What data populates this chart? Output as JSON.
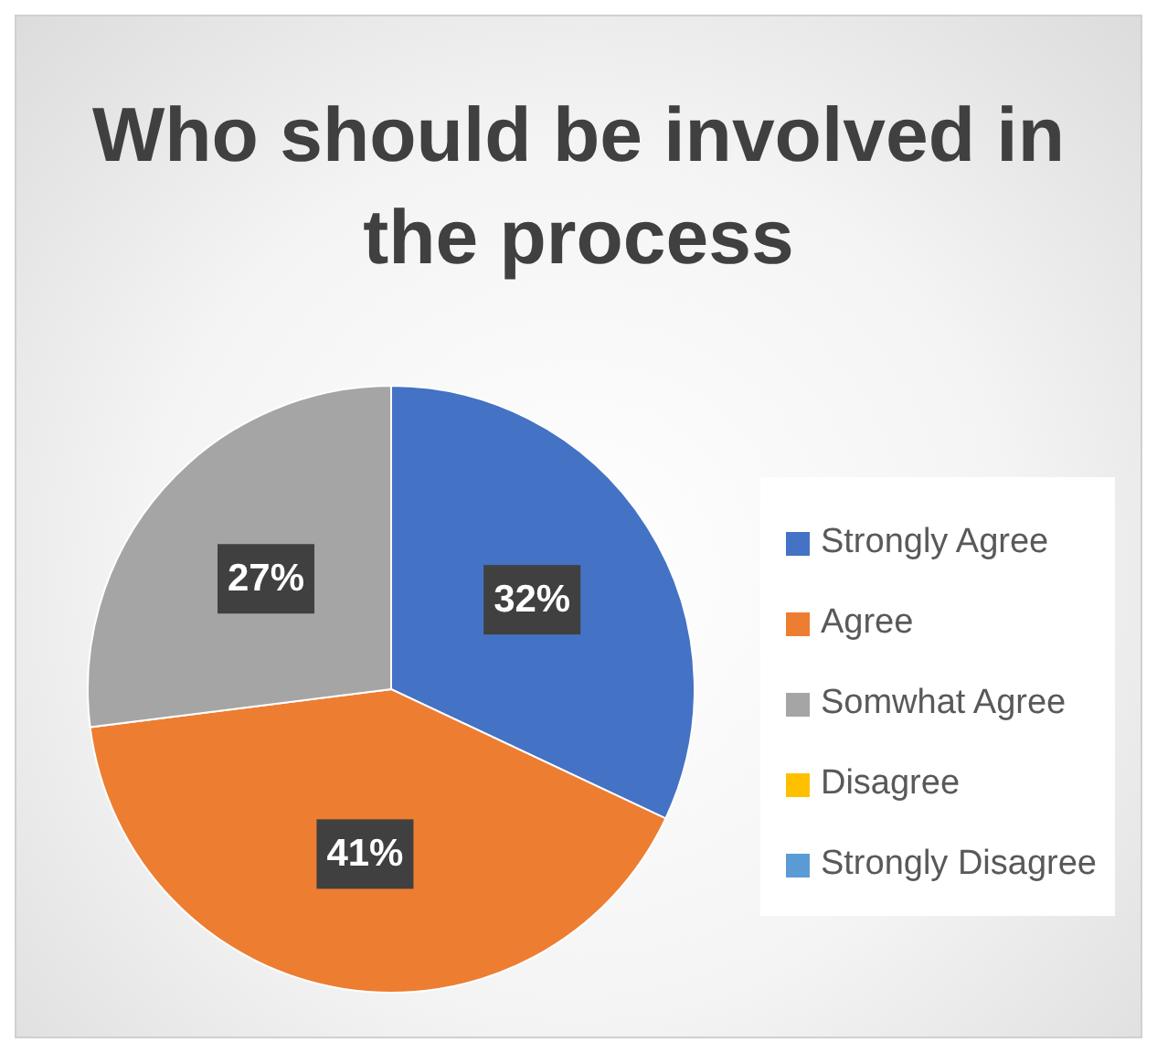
{
  "chart_data": {
    "type": "pie",
    "title": "Who should be involved in the process",
    "categories": [
      "Strongly Agree",
      "Agree",
      "Somwhat Agree",
      "Disagree",
      "Strongly Disagree"
    ],
    "values": [
      32,
      41,
      27,
      0,
      0
    ],
    "colors": [
      "#4472c4",
      "#ed7d31",
      "#a5a5a5",
      "#ffc000",
      "#5b9bd5"
    ],
    "value_labels": [
      "32%",
      "41%",
      "27%",
      null,
      null
    ],
    "legend": "right"
  }
}
